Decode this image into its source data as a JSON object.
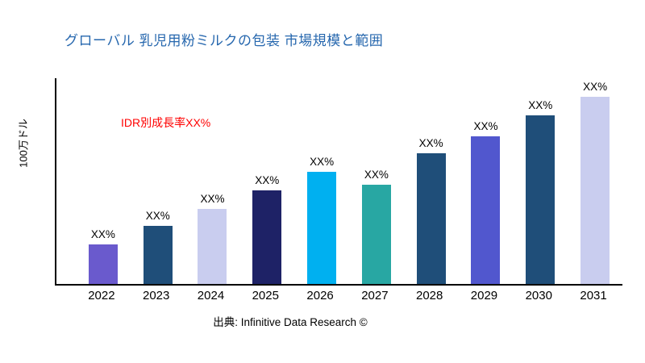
{
  "header": {
    "title": "グローバル 乳児用粉ミルクの包装 市場規模と範囲"
  },
  "annotations": {
    "growth_note": "IDR別成長率XX%"
  },
  "axis": {
    "y_label": "100万ドル"
  },
  "footer": {
    "source": "出典: Infinitive Data Research ©"
  },
  "colors": {
    "title": "#2667AE",
    "annotation": "#FF0000",
    "axis": "#000000"
  },
  "chart_data": {
    "type": "bar",
    "title": "グローバル 乳児用粉ミルクの包装 市場規模と範囲",
    "categories": [
      "2022",
      "2023",
      "2024",
      "2025",
      "2026",
      "2027",
      "2028",
      "2029",
      "2030",
      "2031"
    ],
    "values": [
      21,
      31,
      40,
      50,
      60,
      53,
      70,
      79,
      90,
      100
    ],
    "bar_labels": [
      "XX%",
      "XX%",
      "XX%",
      "XX%",
      "XX%",
      "XX%",
      "XX%",
      "XX%",
      "XX%",
      "XX%"
    ],
    "bar_colors": [
      "#6A5ACD",
      "#1F4E79",
      "#C9CDEF",
      "#1E2266",
      "#00B0F0",
      "#28A7A3",
      "#1F4E79",
      "#5157CE",
      "#1F4E79",
      "#C9CDEF"
    ],
    "xlabel": "",
    "ylabel": "100万ドル",
    "ylim": [
      0,
      110
    ],
    "grid": false,
    "legend": false,
    "annotation": "IDR別成長率XX%"
  }
}
